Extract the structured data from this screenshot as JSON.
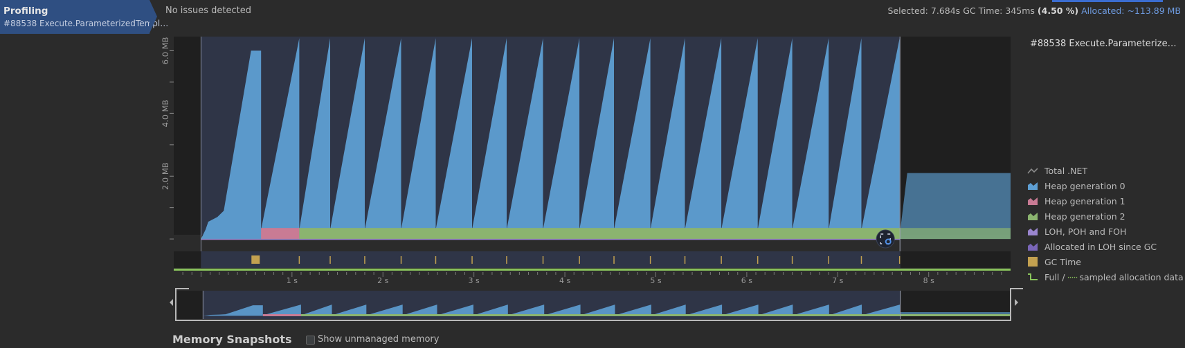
{
  "sidebar": {
    "title": "Profiling",
    "subtitle": "#88538 Execute.ParameterizedTempl…"
  },
  "status": {
    "issues": "No issues detected",
    "selected_label": "Selected:",
    "selected_value": "7.684s",
    "gc_label": "GC Time:",
    "gc_value": "345ms",
    "gc_percent": "(4.50 %)",
    "allocated": "Allocated: ~113.89 MB"
  },
  "legend": {
    "title": "#88538 Execute.Parameterize…",
    "items": [
      {
        "label": "Total .NET",
        "icon": "line-icon",
        "color": "#8c8c8c"
      },
      {
        "label": "Heap generation 0",
        "icon": "area-icon",
        "color": "#5e9fd3"
      },
      {
        "label": "Heap generation 1",
        "icon": "area-icon",
        "color": "#c97b94"
      },
      {
        "label": "Heap generation 2",
        "icon": "area-icon",
        "color": "#8bb46f"
      },
      {
        "label": "LOH, POH and FOH",
        "icon": "area-icon",
        "color": "#9b86cf"
      },
      {
        "label": "Allocated in LOH since GC",
        "icon": "area-icon",
        "color": "#7a66b8"
      },
      {
        "label": "GC Time",
        "icon": "square-icon",
        "color": "#c3a150"
      }
    ],
    "full_label": "Full /",
    "sampled_label": "sampled allocation data",
    "full_color": "#8ac45c"
  },
  "chart_data": {
    "type": "area",
    "yticks": [
      "6.0 MB",
      "4.0 MB",
      "2.0 MB"
    ],
    "xticks": [
      "1 s",
      "2 s",
      "3 s",
      "4 s",
      "5 s",
      "6 s",
      "7 s",
      "8 s"
    ],
    "x_unit": "s",
    "xlim": [
      -0.3,
      8.9
    ],
    "ylim_mb": [
      -0.35,
      6.45
    ],
    "selection_s": [
      0.0,
      7.684
    ],
    "gen0_sawtooth": {
      "gc_times_s": [
        0.66,
        1.08,
        1.42,
        1.8,
        2.2,
        2.58,
        2.98,
        3.36,
        3.76,
        4.16,
        4.54,
        4.94,
        5.32,
        5.72,
        6.12,
        6.5,
        6.9,
        7.26,
        7.68
      ],
      "peak_mb": 6.4,
      "base_mb": 0.3
    },
    "gen1_mb": 0.35,
    "gen1_span_s": [
      0.66,
      1.08
    ],
    "gen2_mb": 0.35,
    "gen2_span_s": [
      1.08,
      8.9
    ],
    "after_selection_mb": 2.1,
    "gc_time_marker_s": 0.6,
    "colors": {
      "gen0": "#5e9fd3",
      "gen1": "#c97b94",
      "gen2": "#8bb46f",
      "loh": "#9b86cf",
      "gc": "#c3a150",
      "bg_selected": "#2f3547",
      "bg_unselected": "#1f1f1f"
    }
  },
  "snapshots": {
    "title": "Memory Snapshots",
    "show_unmanaged_label": "Show unmanaged memory"
  }
}
